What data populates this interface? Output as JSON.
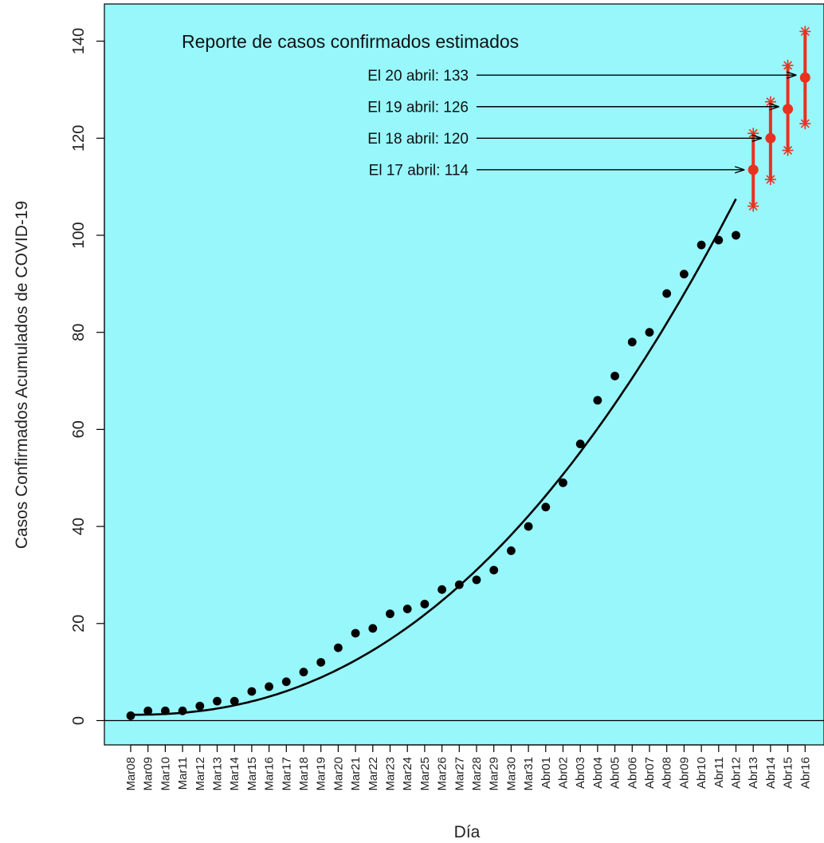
{
  "chart_data": {
    "type": "scatter",
    "title": "Reporte de casos confirmados estimados",
    "xlabel": "Día",
    "ylabel": "Casos Confirmados Acumulados de COVID-19",
    "ylim": [
      0,
      145
    ],
    "yticks": [
      0,
      20,
      40,
      60,
      80,
      100,
      120,
      140
    ],
    "categories": [
      "Mar08",
      "Mar09",
      "Mar10",
      "Mar11",
      "Mar12",
      "Mar13",
      "Mar14",
      "Mar15",
      "Mar16",
      "Mar17",
      "Mar18",
      "Mar19",
      "Mar20",
      "Mar21",
      "Mar22",
      "Mar23",
      "Mar24",
      "Mar25",
      "Mar26",
      "Mar27",
      "Mar28",
      "Mar29",
      "Mar30",
      "Mar31",
      "Abr01",
      "Abr02",
      "Abr03",
      "Abr04",
      "Abr05",
      "Abr06",
      "Abr07",
      "Abr08",
      "Abr09",
      "Abr10",
      "Abr11",
      "Abr12",
      "Abr13",
      "Abr14",
      "Abr15",
      "Abr16"
    ],
    "observed": {
      "color": "#000000",
      "values": [
        1,
        2,
        2,
        2,
        3,
        4,
        4,
        6,
        7,
        8,
        10,
        12,
        15,
        18,
        19,
        22,
        23,
        24,
        27,
        28,
        29,
        31,
        35,
        40,
        44,
        49,
        57,
        66,
        71,
        78,
        80,
        88,
        92,
        98,
        99,
        100
      ]
    },
    "fitted_curve": {
      "color": "#000000",
      "start": "Mar08",
      "end": "Abr12",
      "start_value": 1.2,
      "end_value": 107.5
    },
    "forecast": {
      "color": "#e8321e",
      "points": [
        {
          "day": "Abr13",
          "estimate": 113.5,
          "lower": 106,
          "upper": 121
        },
        {
          "day": "Abr14",
          "estimate": 120,
          "lower": 111.5,
          "upper": 127.5
        },
        {
          "day": "Abr15",
          "estimate": 126,
          "lower": 117.5,
          "upper": 135
        },
        {
          "day": "Abr16",
          "estimate": 132.5,
          "lower": 123,
          "upper": 142
        }
      ]
    },
    "annotations": [
      {
        "text": "El 20 abril: 133",
        "y": 133,
        "target": "Abr16"
      },
      {
        "text": "El 19 abril: 126",
        "y": 126.5,
        "target": "Abr15"
      },
      {
        "text": "El 18 abril: 120",
        "y": 120,
        "target": "Abr14"
      },
      {
        "text": "El 17 abril: 114",
        "y": 113.5,
        "target": "Abr13"
      }
    ],
    "reference_line_y": 0,
    "colors": {
      "plot_background": "#98f7fb",
      "axis": "#000000"
    }
  }
}
